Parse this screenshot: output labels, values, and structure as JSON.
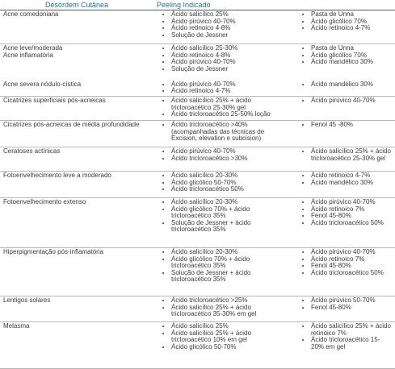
{
  "table": {
    "header": [
      "Desordem Cutânea",
      "Peeling Indicado"
    ],
    "rows": [
      {
        "entries": [
          {
            "disorder": [
              "Acne comedoniana"
            ],
            "left": [
              "Ácido salicílico 25%",
              "Ácido pirúvico 40-70%",
              "Ácido retinoico 4-8%",
              "Solução de Jessner"
            ],
            "right": [
              "Pasta de Unna",
              "Ácido glicólico 70%",
              "Ácido retinoico 4-7%"
            ]
          }
        ]
      },
      {
        "entries": [
          {
            "disorder": [
              "Acne leve/moderada",
              "Acne inflamatória"
            ],
            "left": [
              "Ácido salicílico 25-30%",
              "Ácido retinoico 4-8%",
              "Ácido pirúvico 40-70%",
              "Solução de Jessner"
            ],
            "right": [
              "Pasta de Unna",
              "Ácido glicólico 70%",
              "Ácido mandélico 30%"
            ]
          },
          {
            "disorder": [
              "Acne severa nódulo-cística"
            ],
            "left": [
              "Ácido pirúvico 40-70%",
              "Ácido retinoico 4-7%"
            ],
            "right": [
              "Ácido mandélico 30%"
            ]
          }
        ]
      },
      {
        "entries": [
          {
            "disorder": [
              "Cicatrizes superficiais pós-acneicas"
            ],
            "left": [
              "Ácido salicílico 25% + ácido tricloroacético 25-30% gel",
              "Ácido tricloroacético 25-50% loção"
            ],
            "right": [
              "Ácido pirúvico 40-70%"
            ]
          }
        ]
      },
      {
        "entries": [
          {
            "disorder": [
              "Cicatrizes pós-acneicas de média profundidade"
            ],
            "left": [
              "Ácido tricloroacético >40% (acompanhadas das técnicas de Excision, elevation e subcision)"
            ],
            "right": [
              "Fenol 45 -80%"
            ]
          }
        ]
      },
      {
        "entries": [
          {
            "disorder": [
              "Ceratoses actínicas"
            ],
            "left": [
              "Ácido pirúvico 40-70%",
              "Ácido tricloroacético >30%"
            ],
            "right": [
              "Ácido salicílico 25% + ácido tricloroacético 25-30% gel"
            ]
          }
        ]
      },
      {
        "entries": [
          {
            "disorder": [
              "Fotoenvelhecimento leve a moderado"
            ],
            "left": [
              "Ácido salicílico 20-30%",
              "Ácido glicólico 50-70%",
              "Ácido tricloroacético 50%"
            ],
            "right": [
              "Ácido retinoico 4-7%",
              "Ácido mandélico 30%"
            ]
          }
        ]
      },
      {
        "entries": [
          {
            "disorder": [
              "Fotoenvelhecimento extenso"
            ],
            "left": [
              "Ácido salicílico 20-30%",
              "Ácido glicólico 70% + ácido tricloroacético 35%",
              "Solução de Jessner + ácido tricloroacético 35%"
            ],
            "right": [
              "Ácido pirúvico 40-70%",
              "Ácido retinoico 7%",
              "Fenol 45-80%",
              "Ácido tricloroacético 50%"
            ]
          }
        ]
      },
      {
        "entries": [
          {
            "disorder": [
              "Hiperpigmentação pós-inflamatória"
            ],
            "left": [
              "Ácido salicílico 20-30%",
              "Ácido glicólico 70% + ácido tricloroacético 35%",
              "Solução de Jessner + ácido tricloroacético 35%"
            ],
            "right": [
              "Ácido pirúvico 40-70%",
              "Ácido retinoico 7%",
              "Fenol 45-80%",
              "Ácido tricloroacético 50%"
            ]
          }
        ]
      },
      {
        "entries": [
          {
            "disorder": [
              "Lentigos solares"
            ],
            "left": [
              "Ácido tricloroacético >25%",
              "Ácido salicílico 25% + ácido tricloroacético 35-30% em gel"
            ],
            "right": [
              "Ácido pirúvico 50-70%",
              "Fenol 45-80%"
            ]
          }
        ]
      },
      {
        "entries": [
          {
            "disorder": [
              "Melasma"
            ],
            "left": [
              "Ácido salicílico 25%",
              "Ácido salicílico 25% + ácido tricloroacético 10% em gel",
              "Ácido glicólico 50-70%"
            ],
            "right": [
              "Ácido salicílico 25% + ácido retinoico 7%",
              "Ácido tricloroacético 15-20% em gel"
            ]
          }
        ]
      }
    ]
  }
}
